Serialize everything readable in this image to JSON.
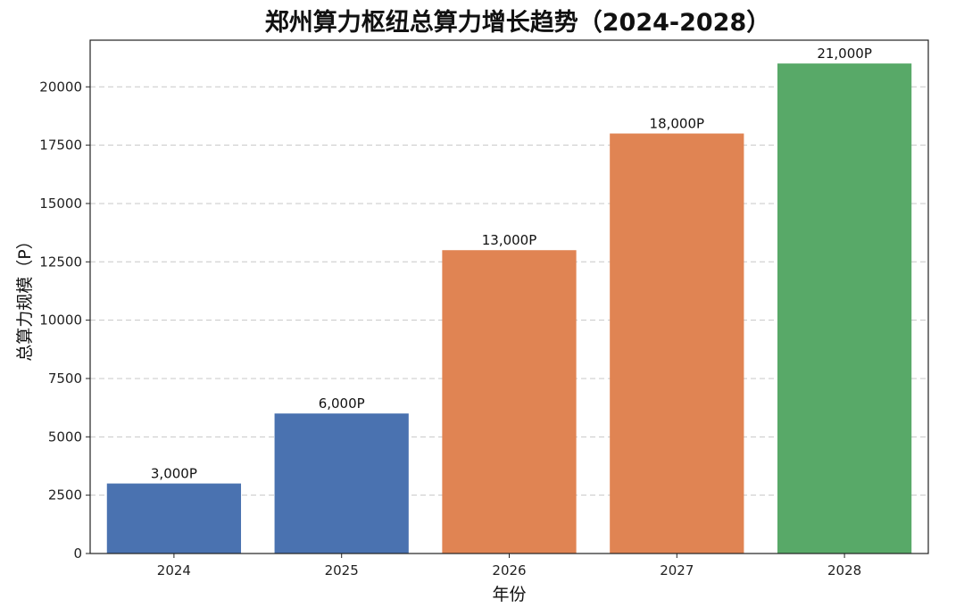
{
  "chart_data": {
    "type": "bar",
    "title": "郑州算力枢纽总算力增长趋势（2024-2028）",
    "xlabel": "年份",
    "ylabel": "总算力规模（P）",
    "categories": [
      "2024",
      "2025",
      "2026",
      "2027",
      "2028"
    ],
    "values": [
      3000,
      6000,
      13000,
      18000,
      21000
    ],
    "data_labels": [
      "3,000P",
      "6,000P",
      "13,000P",
      "18,000P",
      "21,000P"
    ],
    "bar_colors": [
      "#4a72b0",
      "#4a72b0",
      "#e08453",
      "#e08453",
      "#58a968"
    ],
    "ylim": [
      0,
      22000
    ],
    "yticks": [
      0,
      2500,
      5000,
      7500,
      10000,
      12500,
      15000,
      17500,
      20000
    ],
    "ytick_labels": [
      "0",
      "2500",
      "5000",
      "7500",
      "10000",
      "12500",
      "15000",
      "17500",
      "20000"
    ],
    "grid": true,
    "legend": "none"
  }
}
